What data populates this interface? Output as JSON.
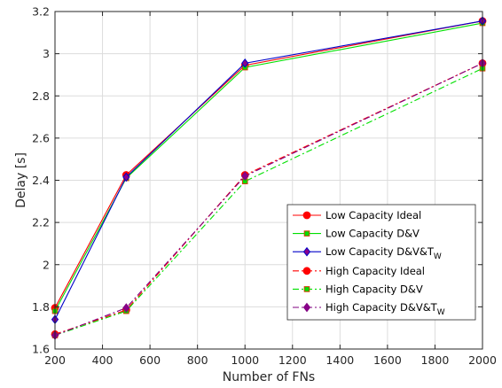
{
  "chart_data": {
    "type": "line",
    "xlabel": "Number of FNs",
    "ylabel": "Delay [s]",
    "xlim": [
      200,
      2000
    ],
    "ylim": [
      1.6,
      3.2
    ],
    "x_ticks": [
      "200",
      "400",
      "600",
      "800",
      "1000",
      "1200",
      "1400",
      "1600",
      "1800",
      "2000"
    ],
    "y_ticks": [
      "1.6",
      "1.8",
      "2",
      "2.2",
      "2.4",
      "2.6",
      "2.8",
      "3",
      "3.2"
    ],
    "grid": true,
    "legend_position": "lower-right",
    "x": [
      200,
      500,
      1000,
      2000
    ],
    "series": [
      {
        "name": "Low Capacity Ideal",
        "name_sub": "",
        "values": [
          1.795,
          2.425,
          2.945,
          3.155
        ],
        "color": "#ff0000",
        "marker": "circle",
        "line": "solid"
      },
      {
        "name": "Low Capacity D&V",
        "name_sub": "",
        "values": [
          1.78,
          2.41,
          2.935,
          3.145
        ],
        "color": "#00e000",
        "marker": "square",
        "line": "solid"
      },
      {
        "name": "Low Capacity D&V&T",
        "name_sub": "W",
        "values": [
          1.74,
          2.415,
          2.955,
          3.155
        ],
        "color": "#0000c8",
        "marker": "diamond",
        "line": "solid"
      },
      {
        "name": "High Capacity Ideal",
        "name_sub": "",
        "values": [
          1.67,
          1.785,
          2.425,
          2.955
        ],
        "color": "#ff0000",
        "marker": "circle",
        "line": "dashdot"
      },
      {
        "name": "High Capacity  D&V",
        "name_sub": "",
        "values": [
          1.665,
          1.78,
          2.395,
          2.93
        ],
        "color": "#00e000",
        "marker": "square",
        "line": "dashdot"
      },
      {
        "name": "High Capacity  D&V&T",
        "name_sub": "W",
        "values": [
          1.665,
          1.795,
          2.42,
          2.955
        ],
        "color": "#800080",
        "marker": "diamond",
        "line": "dashdot"
      }
    ]
  }
}
